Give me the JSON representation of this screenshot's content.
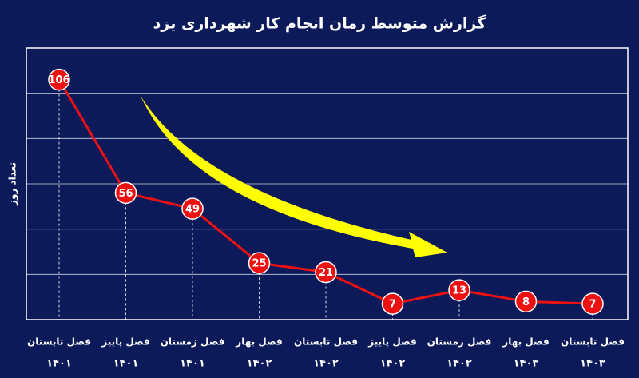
{
  "chart_data": {
    "type": "line",
    "title": "گزارش متوسط زمان انجام کار شهرداری یزد",
    "y_label": "تعداد روز",
    "categories": [
      [
        "فصل تابستان",
        "۱۴۰۱"
      ],
      [
        "فصل پاییز",
        "۱۴۰۱"
      ],
      [
        "فصل زمستان",
        "۱۴۰۱"
      ],
      [
        "فصل بهار",
        "۱۴۰۲"
      ],
      [
        "فصل تابستان",
        "۱۴۰۲"
      ],
      [
        "فصل پاییز",
        "۱۴۰۲"
      ],
      [
        "فصل زمستان",
        "۱۴۰۲"
      ],
      [
        "فصل بهار",
        "۱۴۰۳"
      ],
      [
        "فصل تابستان",
        "۱۴۰۳"
      ]
    ],
    "values": [
      106,
      56,
      49,
      25,
      21,
      7,
      13,
      8,
      7
    ],
    "color": "#ee1111",
    "ylim": [
      0,
      120
    ],
    "yticks": [
      20,
      40,
      60,
      80,
      100
    ],
    "grid": true
  }
}
